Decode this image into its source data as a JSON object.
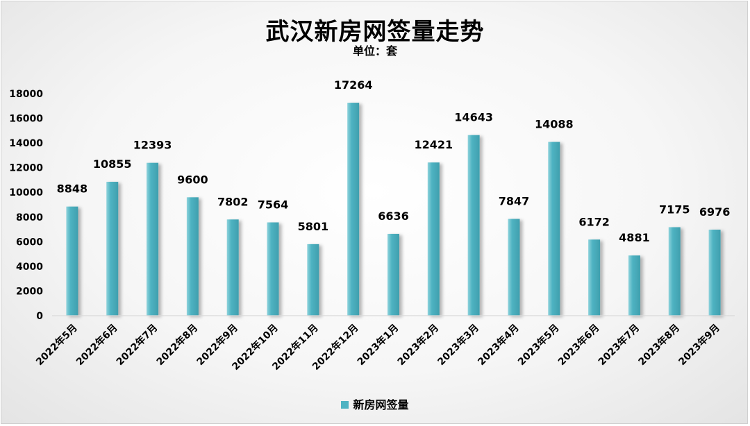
{
  "chart_data": {
    "type": "bar",
    "title": "武汉新房网签量走势",
    "subtitle": "单位：套",
    "categories": [
      "2022年5月",
      "2022年6月",
      "2022年7月",
      "2022年8月",
      "2022年9月",
      "2022年10月",
      "2022年11月",
      "2022年12月",
      "2023年1月",
      "2023年2月",
      "2023年3月",
      "2023年4月",
      "2023年5月",
      "2023年6月",
      "2023年7月",
      "2023年8月",
      "2023年9月"
    ],
    "series": [
      {
        "name": "新房网签量",
        "values": [
          8848,
          10855,
          12393,
          9600,
          7802,
          7564,
          5801,
          17264,
          6636,
          12421,
          14643,
          7847,
          14088,
          6172,
          4881,
          7175,
          6976
        ]
      }
    ],
    "ylim": [
      0,
      18000
    ],
    "yticks": [
      0,
      2000,
      4000,
      6000,
      8000,
      10000,
      12000,
      14000,
      16000,
      18000
    ],
    "data_labels": true,
    "grid": false,
    "legend": "bottom",
    "bar_color": "#4fb3c2"
  }
}
